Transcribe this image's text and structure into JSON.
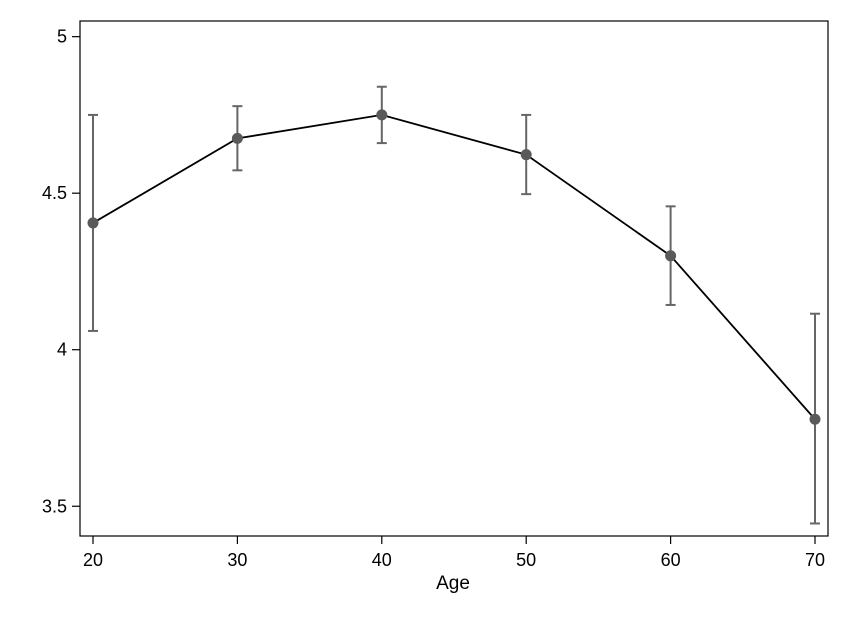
{
  "chart_data": {
    "type": "line",
    "title": "",
    "xlabel": "Age",
    "ylabel": "",
    "x": [
      20,
      30,
      40,
      50,
      60,
      70
    ],
    "series": [
      {
        "values": [
          4.405,
          4.675,
          4.75,
          4.623,
          4.3,
          3.778
        ],
        "ci_lower": [
          4.06,
          4.573,
          4.66,
          4.497,
          4.143,
          3.445
        ],
        "ci_upper": [
          4.75,
          4.778,
          4.84,
          4.75,
          4.458,
          4.115
        ]
      }
    ],
    "xticks": [
      20,
      30,
      40,
      50,
      60,
      70
    ],
    "yticks": [
      3.5,
      4,
      4.5,
      5
    ],
    "xtick_labels": [
      "20",
      "30",
      "40",
      "50",
      "60",
      "70"
    ],
    "ytick_labels": [
      "3.5",
      "4",
      "4.5",
      "5"
    ],
    "xlim": [
      19.1,
      70.9
    ],
    "ylim": [
      3.405,
      5.05
    ],
    "grid": false,
    "legend": "none",
    "colors": {
      "line": "#000000",
      "marker": "#5a5a5a",
      "errorbar": "#666666",
      "frame": "#000000"
    }
  }
}
